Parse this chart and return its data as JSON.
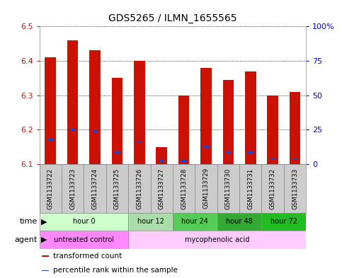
{
  "title": "GDS5265 / ILMN_1655565",
  "samples": [
    "GSM1133722",
    "GSM1133723",
    "GSM1133724",
    "GSM1133725",
    "GSM1133726",
    "GSM1133727",
    "GSM1133728",
    "GSM1133729",
    "GSM1133730",
    "GSM1133731",
    "GSM1133732",
    "GSM1133733"
  ],
  "bar_tops": [
    6.41,
    6.46,
    6.43,
    6.35,
    6.4,
    6.15,
    6.3,
    6.38,
    6.345,
    6.37,
    6.3,
    6.31
  ],
  "bar_bottoms": [
    6.1,
    6.1,
    6.1,
    6.1,
    6.1,
    6.1,
    6.1,
    6.1,
    6.1,
    6.1,
    6.1,
    6.1
  ],
  "blue_positions": [
    6.17,
    6.2,
    6.195,
    6.135,
    6.165,
    6.11,
    6.11,
    6.15,
    6.135,
    6.135,
    6.115,
    6.115
  ],
  "ylim": [
    6.1,
    6.5
  ],
  "yticks_left": [
    6.1,
    6.2,
    6.3,
    6.4,
    6.5
  ],
  "ytick_right_labels": [
    "0",
    "25",
    "50",
    "75",
    "100%"
  ],
  "bar_color": "#cc1100",
  "blue_color": "#2244bb",
  "grid_color": "#000000",
  "bg_color": "#ffffff",
  "time_groups": [
    {
      "label": "hour 0",
      "start": 0,
      "end": 4,
      "color": "#ccffcc"
    },
    {
      "label": "hour 12",
      "start": 4,
      "end": 6,
      "color": "#aaddaa"
    },
    {
      "label": "hour 24",
      "start": 6,
      "end": 8,
      "color": "#55cc55"
    },
    {
      "label": "hour 48",
      "start": 8,
      "end": 10,
      "color": "#33aa33"
    },
    {
      "label": "hour 72",
      "start": 10,
      "end": 12,
      "color": "#22bb22"
    }
  ],
  "agent_groups": [
    {
      "label": "untreated control",
      "start": 0,
      "end": 4,
      "color": "#ff88ff"
    },
    {
      "label": "mycophenolic acid",
      "start": 4,
      "end": 12,
      "color": "#ffccff"
    }
  ],
  "legend_items": [
    {
      "color": "#cc1100",
      "label": "transformed count"
    },
    {
      "color": "#2244bb",
      "label": "percentile rank within the sample"
    }
  ],
  "left_axis_color": "#cc1100",
  "right_axis_color": "#0000cc",
  "bar_width": 0.5
}
